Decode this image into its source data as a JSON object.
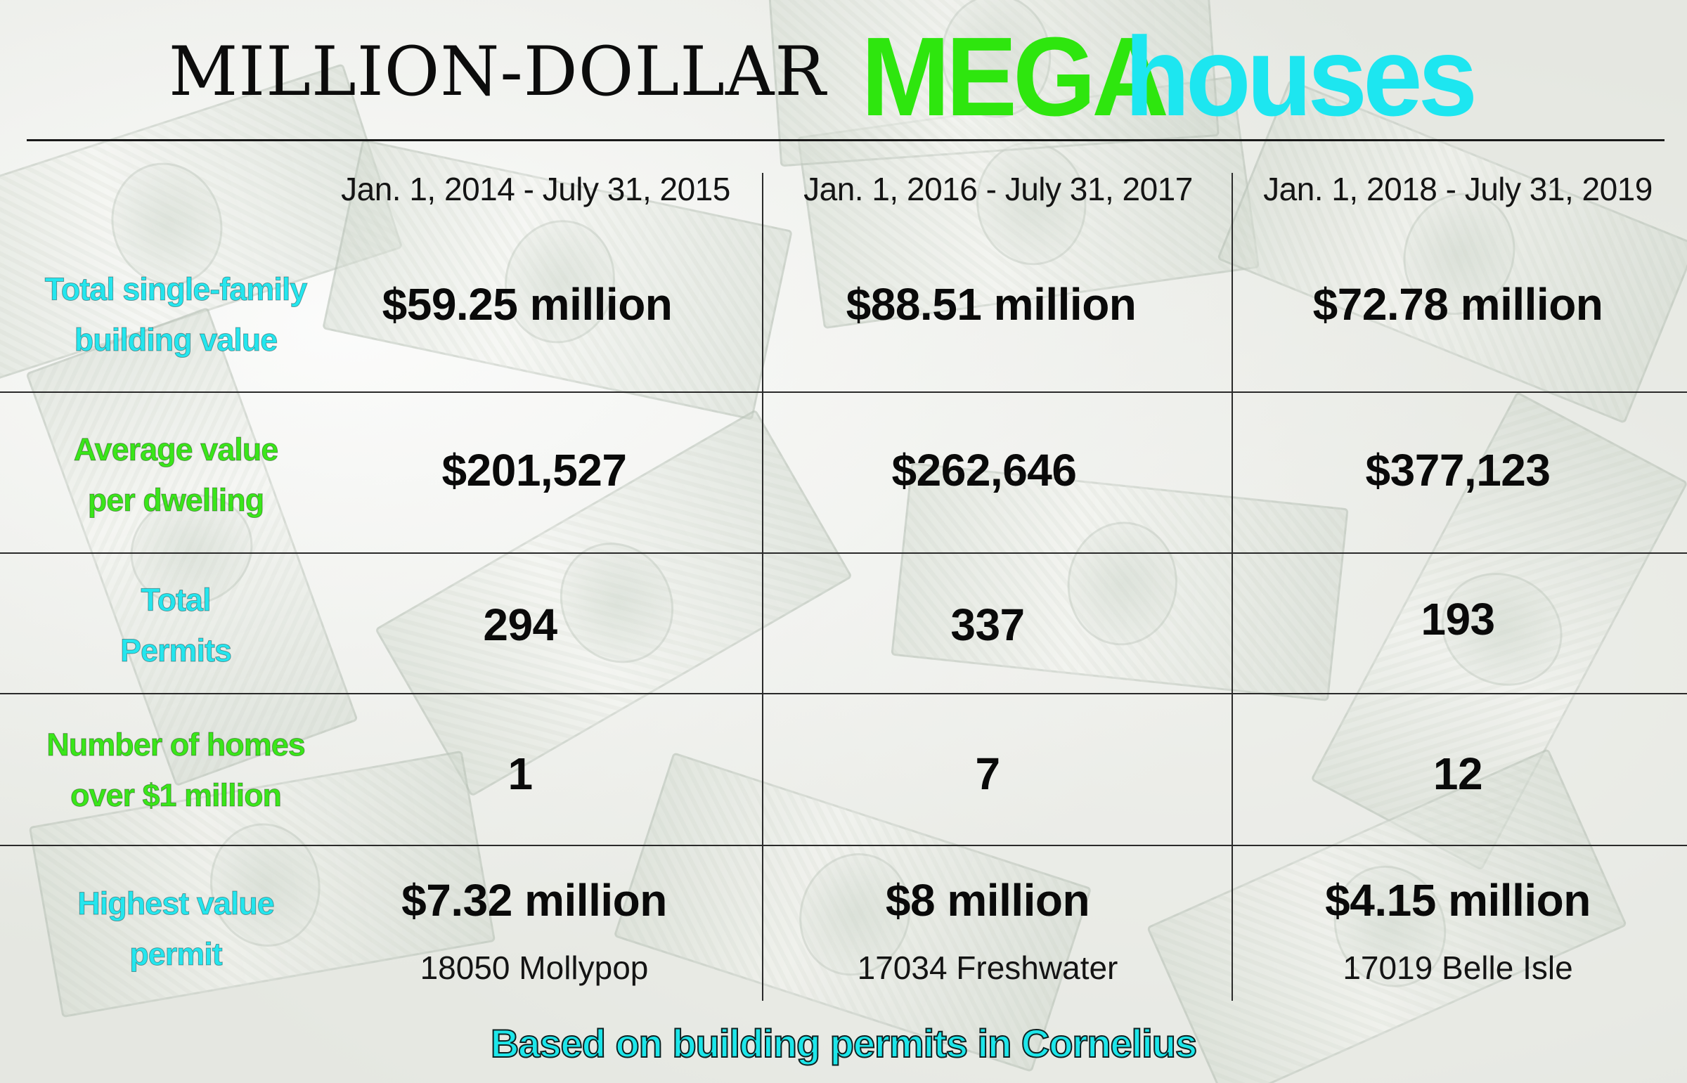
{
  "title": {
    "left": "MILLION-DOLLAR",
    "mega": "MEGA",
    "houses": "houses",
    "colors": {
      "mega": "#2ee60e",
      "houses": "#1de6f0"
    }
  },
  "columns": [
    "Jan. 1, 2014 - July 31, 2015",
    "Jan. 1, 2016 - July 31, 2017",
    "Jan. 1, 2018 - July 31, 2019"
  ],
  "rows": [
    {
      "label_line1": "Total single-family",
      "label_line2": "building value",
      "label_color": "cyan",
      "values": [
        "$59.25 million",
        "$88.51 million",
        "$72.78 million"
      ]
    },
    {
      "label_line1": "Average value",
      "label_line2": "per dwelling",
      "label_color": "green",
      "values": [
        "$201,527",
        "$262,646",
        "$377,123"
      ]
    },
    {
      "label_line1": "Total",
      "label_line2": "Permits",
      "label_color": "cyan",
      "values": [
        "294",
        "337",
        "193"
      ]
    },
    {
      "label_line1": "Number of homes",
      "label_line2": "over $1 million",
      "label_color": "green",
      "values": [
        "1",
        "7",
        "12"
      ]
    },
    {
      "label_line1": "Highest value",
      "label_line2": "permit",
      "label_color": "cyan",
      "values": [
        "$7.32 million",
        "$8 million",
        "$4.15 million"
      ],
      "addresses": [
        "18050 Mollypop",
        "17034 Freshwater",
        "17019 Belle Isle"
      ]
    }
  ],
  "footer": "Based on building permits in Cornelius"
}
